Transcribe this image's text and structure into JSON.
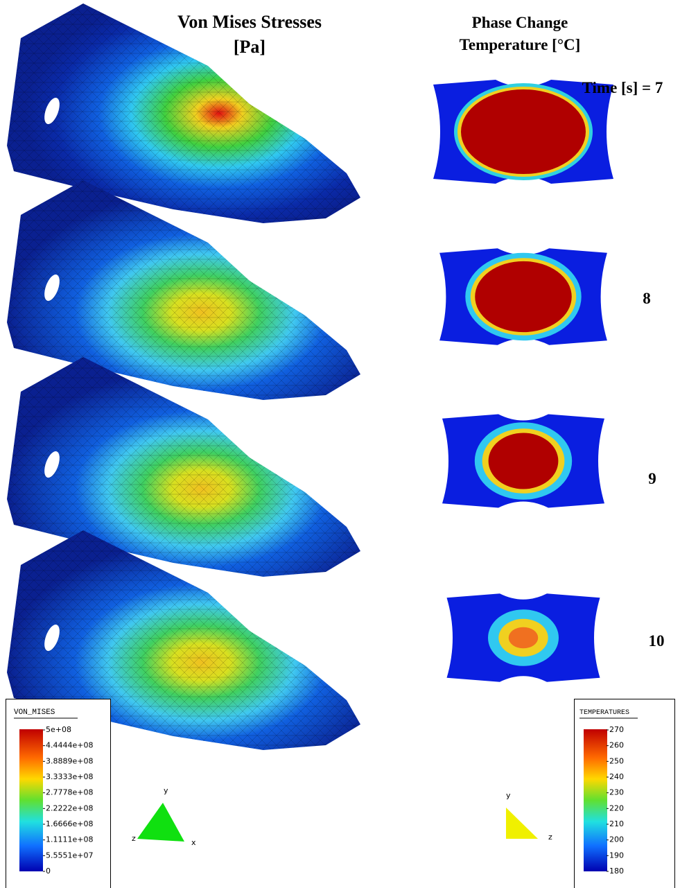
{
  "titles": {
    "stress": [
      "Von Mises Stresses",
      "[Pa]"
    ],
    "temperature": [
      "Phase Change",
      "Temperature [°C]"
    ]
  },
  "time_label": "Time [s] = 7",
  "times": [
    "8",
    "9",
    "10"
  ],
  "legends": {
    "von_mises": {
      "title": "VON_MISES",
      "labels": [
        "5e+08",
        "4.4444e+08",
        "3.8889e+08",
        "3.3333e+08",
        "2.7778e+08",
        "2.2222e+08",
        "1.6666e+08",
        "1.1111e+08",
        "5.5551e+07",
        "0"
      ]
    },
    "temperatures": {
      "title": "TEMPERATURES",
      "labels": [
        "270",
        "260",
        "250",
        "240",
        "230",
        "220",
        "210",
        "200",
        "190",
        "180"
      ]
    }
  },
  "axes": {
    "left": [
      "y",
      "z",
      "x"
    ],
    "right": [
      "y",
      "z"
    ]
  }
}
